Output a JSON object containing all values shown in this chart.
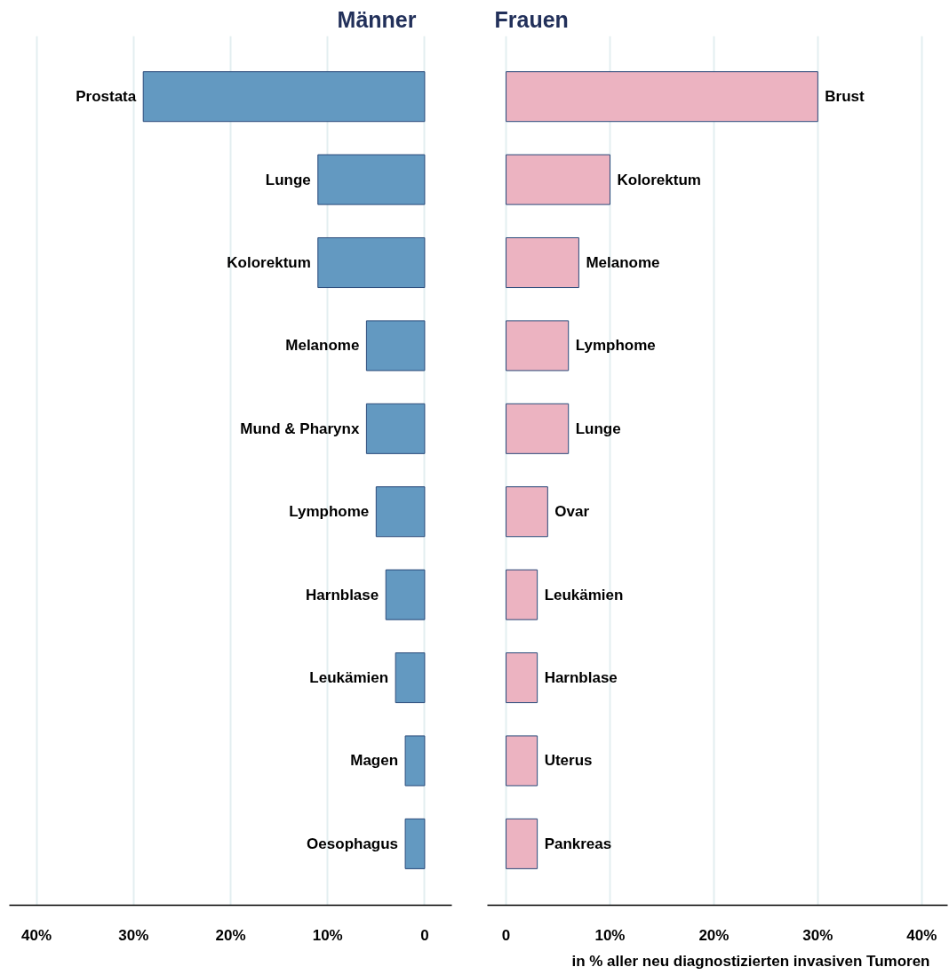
{
  "chart_data": [
    {
      "type": "bar",
      "orientation": "horizontal",
      "title": "Männer",
      "categories": [
        "Prostata",
        "Lunge",
        "Kolorektum",
        "Melanome",
        "Mund & Pharynx",
        "Lymphome",
        "Harnblase",
        "Leukämien",
        "Magen",
        "Oesophagus"
      ],
      "values": [
        29,
        11,
        11,
        6,
        6,
        5,
        4,
        3,
        2,
        2
      ],
      "color": "#6399c1",
      "xlim": [
        42.8,
        -2.8
      ],
      "xticks": [
        {
          "value": 40,
          "label": "40%"
        },
        {
          "value": 30,
          "label": "30%"
        },
        {
          "value": 20,
          "label": "20%"
        },
        {
          "value": 10,
          "label": "10%"
        },
        0
      ],
      "grid": "x"
    },
    {
      "type": "bar",
      "orientation": "horizontal",
      "title": "Frauen",
      "xlabel": "in % aller neu diagnostizierten invasiven Tumoren",
      "categories": [
        "Brust",
        "Kolorektum",
        "Melanome",
        "Lymphome",
        "Lunge",
        "Ovar",
        "Leukämien",
        "Harnblase",
        "Uterus",
        "Pankreas"
      ],
      "values": [
        30,
        10,
        7,
        6,
        6,
        4,
        3,
        3,
        3,
        3
      ],
      "color": "#ecb3c1",
      "xlim": [
        -1.8,
        42.5
      ],
      "xticks": [
        0,
        {
          "value": 10,
          "label": "10%"
        },
        {
          "value": 20,
          "label": "20%"
        },
        {
          "value": 30,
          "label": "30%"
        },
        {
          "value": 40,
          "label": "40%"
        }
      ],
      "grid": "x"
    }
  ]
}
